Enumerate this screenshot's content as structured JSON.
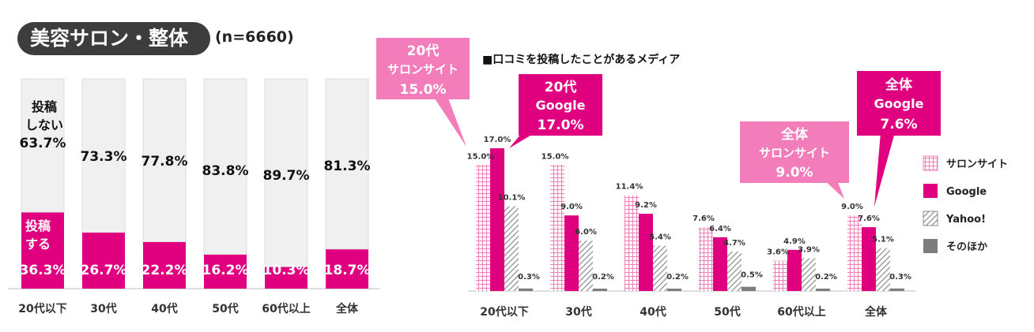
{
  "header": {
    "title": "美容サロン・整体",
    "sample": "(n=6660)"
  },
  "colors": {
    "magenta": "#e0007f",
    "pink": "#f27dba",
    "gray_bar": "#f0f0f0",
    "hatch": "#8a8a8a",
    "other": "#7d7d7d"
  },
  "chart_data": [
    {
      "type": "stacked-bar",
      "categories": [
        "20代以下",
        "30代",
        "40代",
        "50代",
        "60代以上",
        "全体"
      ],
      "series": [
        {
          "name": "投稿する",
          "values": [
            36.3,
            26.7,
            22.2,
            16.2,
            10.3,
            18.7
          ],
          "labels": [
            "36.3%",
            "26.7%",
            "22.2%",
            "16.2%",
            "10.3%",
            "18.7%"
          ]
        },
        {
          "name": "投稿しない",
          "values": [
            63.7,
            73.3,
            77.8,
            83.8,
            89.7,
            81.3
          ],
          "labels": [
            "63.7%",
            "73.3%",
            "77.8%",
            "83.8%",
            "89.7%",
            "81.3%"
          ]
        }
      ],
      "inline_labels": {
        "post_line1": "投稿",
        "post_line2": "する",
        "nopost_line1": "投稿",
        "nopost_line2": "しない"
      },
      "ylim": [
        0,
        100
      ]
    },
    {
      "type": "bar",
      "title": "■口コミを投稿したことがあるメディア",
      "categories": [
        "20代以下",
        "30代",
        "40代",
        "50代",
        "60代以上",
        "全体"
      ],
      "series": [
        {
          "name": "サロンサイト",
          "values": [
            15.0,
            15.0,
            11.4,
            7.6,
            3.6,
            9.0
          ],
          "labels": [
            "15.0%",
            "15.0%",
            "11.4%",
            "7.6%",
            "3.6%",
            "9.0%"
          ]
        },
        {
          "name": "Google",
          "values": [
            17.0,
            9.0,
            9.2,
            6.4,
            4.9,
            7.6
          ],
          "labels": [
            "17.0%",
            "9.0%",
            "9.2%",
            "6.4%",
            "4.9%",
            "7.6%"
          ]
        },
        {
          "name": "Yahoo!",
          "values": [
            10.1,
            6.0,
            5.4,
            4.7,
            3.9,
            5.1
          ],
          "labels": [
            "10.1%",
            "6.0%",
            "5.4%",
            "4.7%",
            "3.9%",
            "5.1%"
          ]
        },
        {
          "name": "そのほか",
          "values": [
            0.3,
            0.2,
            0.2,
            0.5,
            0.2,
            0.3
          ],
          "labels": [
            "0.3%",
            "0.2%",
            "0.2%",
            "0.5%",
            "0.2%",
            "0.3%"
          ]
        }
      ],
      "ylim": [
        0,
        17
      ],
      "callouts": [
        {
          "line1": "20代",
          "line2": "サロンサイト",
          "line3": "15.0%"
        },
        {
          "line1": "20代",
          "line2": "Google",
          "line3": "17.0%"
        },
        {
          "line1": "全体",
          "line2": "サロンサイト",
          "line3": "9.0%"
        },
        {
          "line1": "全体",
          "line2": "Google",
          "line3": "7.6%"
        }
      ]
    }
  ]
}
